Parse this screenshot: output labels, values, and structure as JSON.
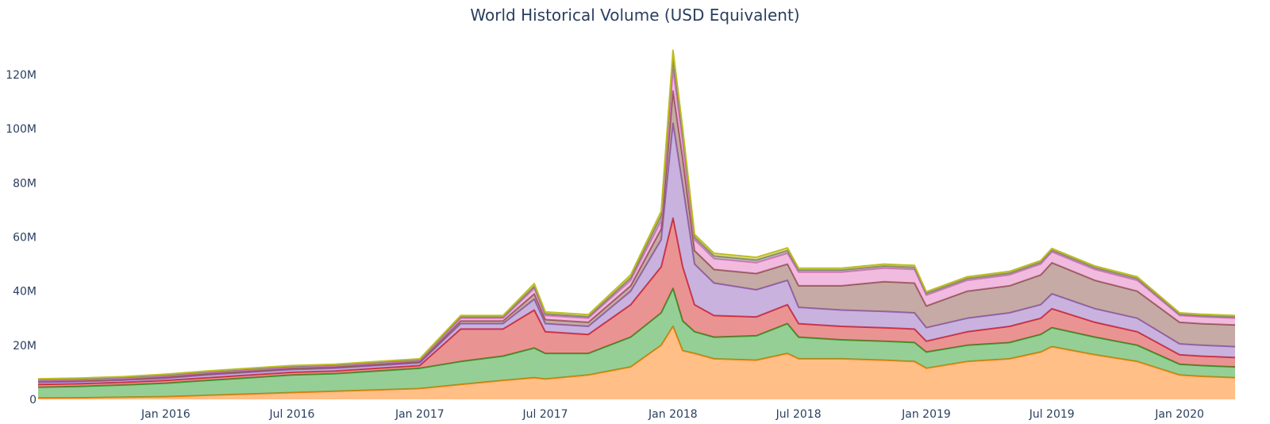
{
  "chart_data": {
    "type": "area",
    "title": "World Historical Volume (USD Equivalent)",
    "xlabel": "",
    "ylabel": "",
    "stacked": true,
    "grid": false,
    "legend": "none",
    "ylim": [
      0,
      130000000
    ],
    "xlim": [
      "2015-07-01",
      "2020-03-21"
    ],
    "x_ticks": [
      {
        "date": "2016-01-01",
        "label": "Jan 2016"
      },
      {
        "date": "2016-07-01",
        "label": "Jul 2016"
      },
      {
        "date": "2017-01-01",
        "label": "Jan 2017"
      },
      {
        "date": "2017-07-01",
        "label": "Jul 2017"
      },
      {
        "date": "2018-01-01",
        "label": "Jan 2018"
      },
      {
        "date": "2018-07-01",
        "label": "Jul 2018"
      },
      {
        "date": "2019-01-01",
        "label": "Jan 2019"
      },
      {
        "date": "2019-07-01",
        "label": "Jul 2019"
      },
      {
        "date": "2020-01-01",
        "label": "Jan 2020"
      }
    ],
    "y_ticks": [
      {
        "value": 0,
        "label": "0"
      },
      {
        "value": 20000000,
        "label": "20M"
      },
      {
        "value": 40000000,
        "label": "40M"
      },
      {
        "value": 60000000,
        "label": "60M"
      },
      {
        "value": 80000000,
        "label": "80M"
      },
      {
        "value": 100000000,
        "label": "100M"
      },
      {
        "value": 120000000,
        "label": "120M"
      }
    ],
    "x": [
      "2015-07-01",
      "2015-09-01",
      "2015-11-01",
      "2016-01-01",
      "2016-03-01",
      "2016-05-01",
      "2016-07-01",
      "2016-09-01",
      "2016-11-01",
      "2017-01-01",
      "2017-03-01",
      "2017-05-01",
      "2017-06-15",
      "2017-07-01",
      "2017-09-01",
      "2017-11-01",
      "2017-12-15",
      "2018-01-01",
      "2018-01-15",
      "2018-02-01",
      "2018-03-01",
      "2018-05-01",
      "2018-06-15",
      "2018-07-01",
      "2018-09-01",
      "2018-11-01",
      "2018-12-15",
      "2019-01-01",
      "2019-03-01",
      "2019-05-01",
      "2019-06-15",
      "2019-07-01",
      "2019-09-01",
      "2019-11-01",
      "2020-01-01",
      "2020-02-01",
      "2020-03-21"
    ],
    "series": [
      {
        "color": "#ff7f0e",
        "values": [
          0.5,
          0.6,
          0.8,
          1.0,
          1.5,
          2.0,
          2.5,
          3.0,
          3.5,
          4.0,
          5.5,
          7.0,
          8.0,
          7.5,
          9.0,
          12.0,
          20.0,
          27.0,
          18.0,
          17.0,
          15.0,
          14.5,
          17.0,
          15.0,
          15.0,
          14.5,
          14.0,
          11.5,
          14.0,
          15.0,
          17.5,
          19.5,
          16.5,
          14.0,
          9.0,
          8.5,
          8.0
        ]
      },
      {
        "color": "#2ca02c",
        "values": [
          4.0,
          4.2,
          4.5,
          5.0,
          5.5,
          6.0,
          6.5,
          6.5,
          7.0,
          7.5,
          8.5,
          9.0,
          11.0,
          9.5,
          8.0,
          11.0,
          12.0,
          14.0,
          11.0,
          8.0,
          8.0,
          9.0,
          11.0,
          8.0,
          7.0,
          7.0,
          7.0,
          6.0,
          6.0,
          6.0,
          6.5,
          7.0,
          6.5,
          6.0,
          4.0,
          4.0,
          4.0
        ]
      },
      {
        "color": "#d62728",
        "values": [
          1.0,
          1.0,
          1.0,
          1.0,
          1.0,
          1.0,
          1.0,
          1.0,
          1.0,
          1.0,
          12.0,
          10.0,
          14.0,
          8.0,
          7.0,
          12.0,
          17.0,
          26.0,
          20.0,
          10.0,
          8.0,
          7.0,
          7.0,
          5.0,
          5.0,
          5.0,
          5.0,
          4.0,
          5.0,
          6.0,
          6.0,
          7.0,
          5.5,
          5.0,
          3.5,
          3.5,
          3.5
        ]
      },
      {
        "color": "#9467bd",
        "values": [
          0.8,
          0.8,
          0.8,
          0.8,
          1.0,
          1.0,
          1.0,
          1.0,
          1.0,
          1.0,
          2.0,
          2.0,
          4.0,
          3.0,
          3.0,
          5.0,
          10.0,
          35.0,
          30.0,
          15.0,
          12.0,
          10.0,
          9.0,
          6.0,
          6.0,
          6.0,
          6.0,
          5.0,
          5.0,
          5.0,
          5.0,
          5.5,
          5.0,
          5.0,
          4.0,
          4.0,
          4.0
        ]
      },
      {
        "color": "#8c564b",
        "values": [
          0.3,
          0.3,
          0.3,
          0.5,
          0.5,
          0.5,
          0.5,
          0.5,
          0.5,
          0.5,
          1.0,
          1.0,
          2.0,
          1.5,
          1.5,
          2.0,
          4.0,
          12.0,
          10.0,
          5.0,
          5.0,
          6.0,
          6.0,
          8.0,
          9.0,
          11.0,
          11.0,
          8.0,
          10.0,
          10.0,
          11.0,
          11.5,
          10.5,
          10.0,
          8.0,
          8.0,
          8.0
        ]
      },
      {
        "color": "#e377c2",
        "values": [
          0.5,
          0.5,
          0.5,
          0.5,
          0.5,
          0.5,
          0.5,
          0.5,
          0.5,
          0.5,
          1.0,
          1.0,
          2.0,
          1.5,
          1.5,
          2.0,
          3.0,
          8.0,
          6.0,
          4.0,
          4.0,
          4.0,
          4.0,
          5.0,
          5.0,
          5.0,
          5.0,
          4.0,
          4.0,
          4.0,
          4.0,
          4.0,
          4.0,
          4.0,
          2.5,
          2.5,
          2.5
        ]
      },
      {
        "color": "#7f7f7f",
        "values": [
          0.2,
          0.2,
          0.2,
          0.2,
          0.2,
          0.2,
          0.2,
          0.2,
          0.2,
          0.2,
          0.5,
          0.5,
          0.8,
          0.6,
          0.6,
          1.0,
          2.0,
          4.0,
          3.0,
          1.0,
          1.0,
          1.0,
          1.0,
          0.8,
          0.8,
          0.8,
          0.8,
          0.7,
          0.7,
          0.7,
          0.7,
          0.7,
          0.7,
          0.7,
          0.5,
          0.5,
          0.5
        ]
      },
      {
        "color": "#bcbd22",
        "values": [
          0.3,
          0.3,
          0.3,
          0.3,
          0.3,
          0.3,
          0.3,
          0.3,
          0.3,
          0.3,
          0.5,
          0.5,
          1.0,
          0.7,
          0.7,
          1.0,
          1.5,
          3.0,
          2.0,
          1.0,
          1.0,
          1.0,
          1.0,
          0.7,
          0.7,
          0.7,
          0.7,
          0.6,
          0.6,
          0.6,
          0.6,
          0.6,
          0.6,
          0.6,
          0.5,
          0.5,
          0.5
        ]
      }
    ],
    "value_unit_multiplier": 1000000
  }
}
